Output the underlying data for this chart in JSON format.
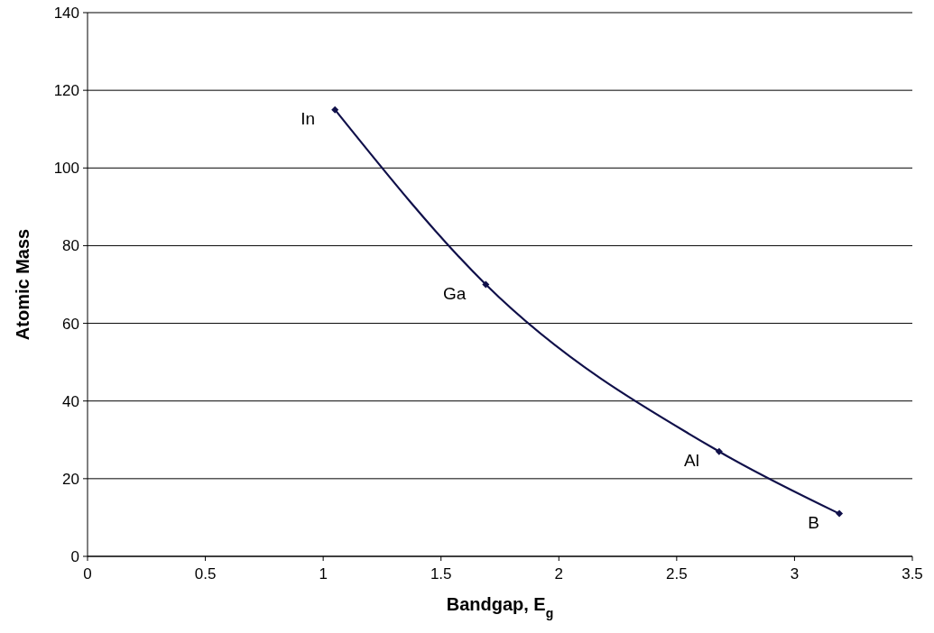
{
  "chart_data": {
    "type": "line",
    "xlabel": "Bandgap, E$_{g}$",
    "ylabel": "Atomic Mass",
    "x": [
      1.05,
      1.69,
      2.68,
      3.19
    ],
    "series": [
      {
        "color": "#10104a",
        "values": [
          115,
          70,
          27,
          11
        ]
      }
    ],
    "xlim": [
      0,
      3.5
    ],
    "xticks": [
      0,
      0.5,
      1,
      1.5,
      2,
      2.5,
      3,
      3.5
    ],
    "ylim": [
      0,
      140
    ],
    "yticks": [
      0,
      20,
      40,
      60,
      80,
      100,
      120,
      140
    ],
    "grid": "y",
    "marker": "diamond",
    "line_style": "solid",
    "annotations": [
      {
        "text": "In",
        "x": 1.05,
        "y": 115
      },
      {
        "text": "Ga",
        "x": 1.69,
        "y": 70
      },
      {
        "text": "Al",
        "x": 2.68,
        "y": 27
      },
      {
        "text": "B",
        "x": 3.19,
        "y": 11
      }
    ]
  }
}
